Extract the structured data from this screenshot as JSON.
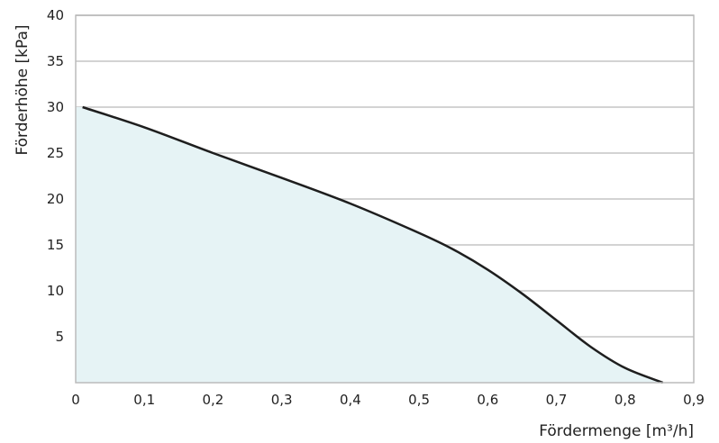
{
  "chart_data": {
    "type": "area",
    "xlabel": "Fördermenge [m³/h]",
    "ylabel": "Förderhöhe [kPa]",
    "xlim": [
      0,
      0.9
    ],
    "ylim": [
      0,
      40
    ],
    "x_ticks": [
      "0",
      "0,1",
      "0,2",
      "0,3",
      "0,4",
      "0,5",
      "0,6",
      "0,7",
      "0,8",
      "0,9"
    ],
    "y_ticks": [
      "5",
      "10",
      "15",
      "20",
      "25",
      "30",
      "35",
      "40"
    ],
    "grid": "horizontal",
    "colors": {
      "line": "#1e1e1e",
      "fill": "#e6f3f5",
      "grid": "#d3d3d3",
      "frame": "#bbbbbb"
    },
    "series": [
      {
        "x": [
          0.01,
          0.1,
          0.2,
          0.3,
          0.4,
          0.5,
          0.55,
          0.6,
          0.65,
          0.7,
          0.75,
          0.8,
          0.855
        ],
        "y": [
          30,
          27.8,
          25,
          22.3,
          19.5,
          16.3,
          14.5,
          12.3,
          9.7,
          6.8,
          3.9,
          1.6,
          0
        ]
      }
    ]
  }
}
